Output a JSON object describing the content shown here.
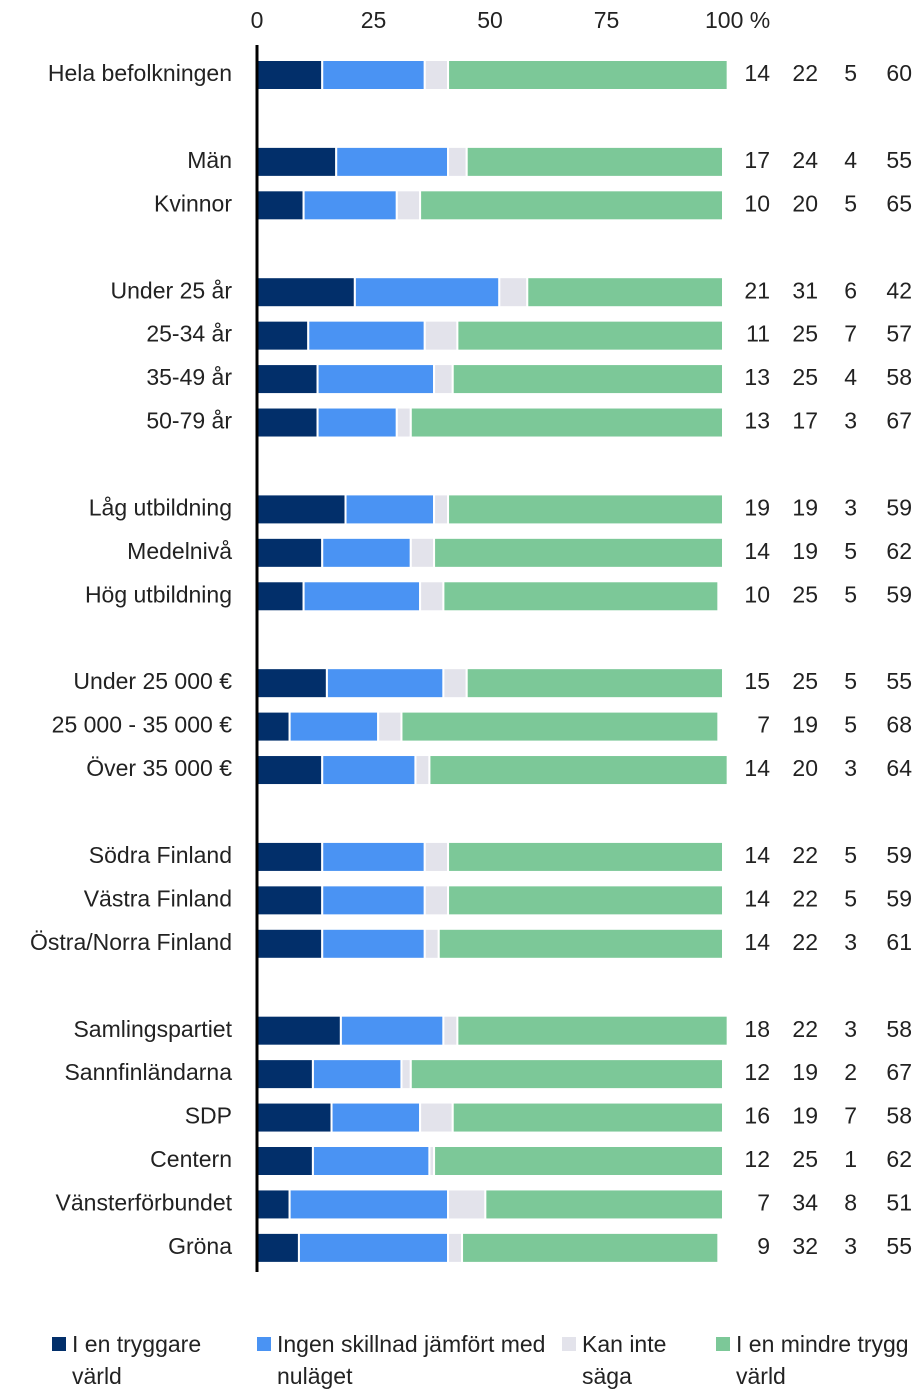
{
  "chart_data": {
    "type": "stacked_bar_horizontal",
    "categories": [
      "Hela befolkningen",
      null,
      "Män",
      "Kvinnor",
      null,
      "Under 25 år",
      "25-34 år",
      "35-49 år",
      "50-79 år",
      null,
      "Låg utbildning",
      "Medelnivå",
      "Hög utbildning",
      null,
      "Under 25 000 €",
      "25 000 - 35 000 €",
      "Över 35 000 €",
      null,
      "Södra Finland",
      "Västra Finland",
      "Östra/Norra Finland",
      null,
      "Samlingspartiet",
      "Sannfinländarna",
      "SDP",
      "Centern",
      "Vänsterförbundet",
      "Gröna"
    ],
    "series": [
      {
        "name": "I en tryggare värld",
        "color": "#022f6a",
        "values": [
          14,
          null,
          17,
          10,
          null,
          21,
          11,
          13,
          13,
          null,
          19,
          14,
          10,
          null,
          15,
          7,
          14,
          null,
          14,
          14,
          14,
          null,
          18,
          12,
          16,
          12,
          7,
          9
        ]
      },
      {
        "name": "Ingen skillnad jämfört med nuläget",
        "color": "#4a93f3",
        "values": [
          22,
          null,
          24,
          20,
          null,
          31,
          25,
          25,
          17,
          null,
          19,
          19,
          25,
          null,
          25,
          19,
          20,
          null,
          22,
          22,
          22,
          null,
          22,
          19,
          19,
          25,
          34,
          32
        ]
      },
      {
        "name": "Kan inte säga",
        "color": "#e3e3eb",
        "values": [
          5,
          null,
          4,
          5,
          null,
          6,
          7,
          4,
          3,
          null,
          3,
          5,
          5,
          null,
          5,
          5,
          3,
          null,
          5,
          5,
          3,
          null,
          3,
          2,
          7,
          1,
          8,
          3
        ]
      },
      {
        "name": "I en mindre trygg värld",
        "color": "#7cc898",
        "values": [
          60,
          null,
          55,
          65,
          null,
          42,
          57,
          58,
          67,
          null,
          59,
          62,
          59,
          null,
          55,
          68,
          64,
          null,
          59,
          59,
          61,
          null,
          58,
          67,
          58,
          62,
          51,
          55
        ]
      }
    ],
    "xlim": [
      0,
      100
    ],
    "xticks": [
      0,
      25,
      50,
      75,
      {
        "value": 100,
        "label": "100 %"
      }
    ],
    "grid": false,
    "legend": "bottom"
  }
}
